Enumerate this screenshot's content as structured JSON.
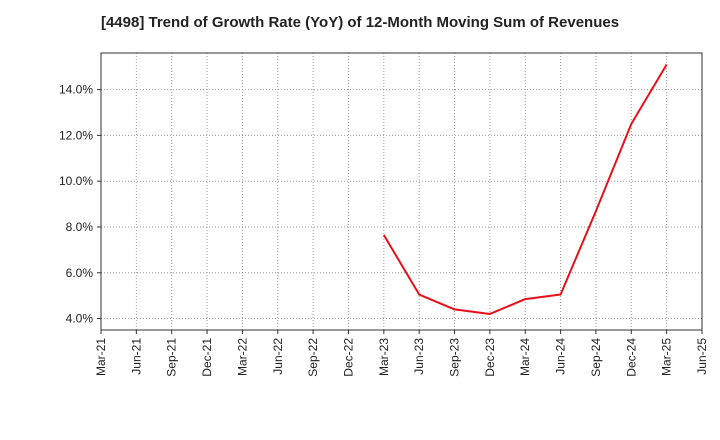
{
  "chart_data": {
    "type": "line",
    "title": "[4498]  Trend of Growth Rate (YoY) of 12-Month Moving Sum of Revenues",
    "xlabel": "",
    "ylabel": "",
    "x_ticks": [
      "Mar-21",
      "Jun-21",
      "Sep-21",
      "Dec-21",
      "Mar-22",
      "Jun-22",
      "Sep-22",
      "Dec-22",
      "Mar-23",
      "Jun-23",
      "Sep-23",
      "Dec-23",
      "Mar-24",
      "Jun-24",
      "Sep-24",
      "Dec-24",
      "Mar-25",
      "Jun-25"
    ],
    "y_ticks": [
      "4.0%",
      "6.0%",
      "8.0%",
      "10.0%",
      "12.0%",
      "14.0%"
    ],
    "y_tick_values": [
      4,
      6,
      8,
      10,
      12,
      14
    ],
    "ylim": [
      3.5,
      15.6
    ],
    "grid": true,
    "series": [
      {
        "color": "#e8101a",
        "x": [
          "Mar-23",
          "Jun-23",
          "Sep-23",
          "Dec-23",
          "Mar-24",
          "Jun-24",
          "Sep-24",
          "Dec-24",
          "Mar-25"
        ],
        "values": [
          7.65,
          5.05,
          4.4,
          4.2,
          4.85,
          5.05,
          8.7,
          12.5,
          15.1
        ]
      }
    ]
  }
}
